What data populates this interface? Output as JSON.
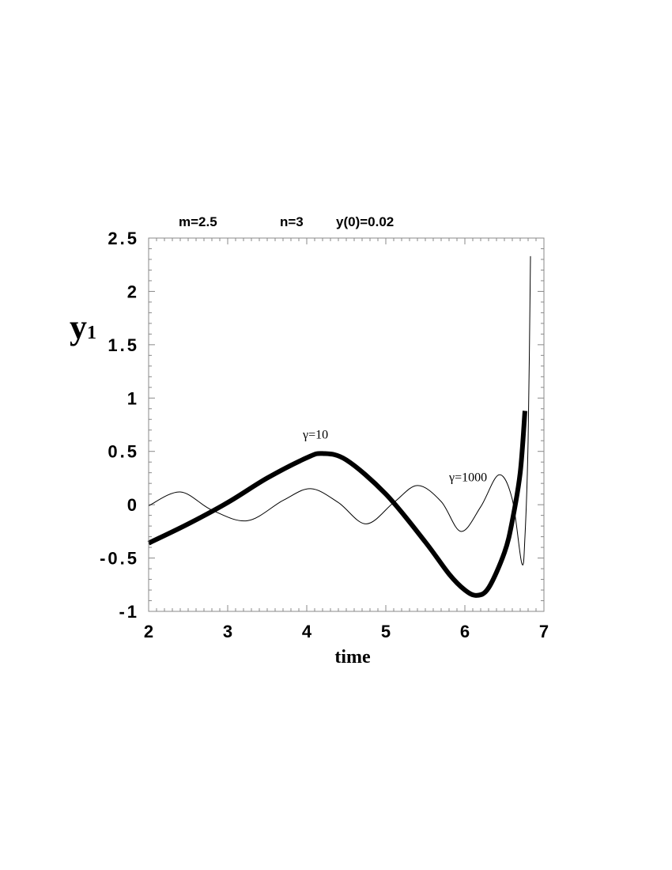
{
  "params": {
    "m": "m=2.5",
    "n": "n=3",
    "y0": "y(0)=0.02"
  },
  "chart_data": {
    "type": "line",
    "xlabel": "time",
    "ylabel": "y",
    "ylabel_subscript": "1",
    "xlim": [
      2,
      7
    ],
    "ylim": [
      -1,
      2.5
    ],
    "x_ticks": [
      "2",
      "3",
      "4",
      "5",
      "6",
      "7"
    ],
    "y_ticks": [
      {
        "value": 2.5,
        "label": "2.5"
      },
      {
        "value": 2,
        "label": "2"
      },
      {
        "value": 1.5,
        "label": "1.5"
      },
      {
        "value": 1,
        "label": "1"
      },
      {
        "value": 0.5,
        "label": "0.5"
      },
      {
        "value": 0,
        "label": "0"
      },
      {
        "value": -0.5,
        "label": "-0.5"
      },
      {
        "value": -1,
        "label": "-1"
      }
    ],
    "grid": false,
    "series": [
      {
        "name": "γ=10",
        "line_weight": "thick",
        "label_at": [
          3.95,
          0.62
        ],
        "x": [
          2.0,
          2.5,
          3.0,
          3.5,
          4.0,
          4.2,
          4.5,
          5.0,
          5.5,
          5.8,
          6.0,
          6.15,
          6.3,
          6.5,
          6.6,
          6.7,
          6.76
        ],
        "y": [
          -0.36,
          -0.18,
          0.02,
          0.25,
          0.44,
          0.48,
          0.42,
          0.1,
          -0.35,
          -0.65,
          -0.8,
          -0.85,
          -0.78,
          -0.45,
          -0.15,
          0.3,
          0.88
        ]
      },
      {
        "name": "γ=1000",
        "line_weight": "thin",
        "label_at": [
          5.8,
          0.22
        ],
        "x": [
          2.0,
          2.4,
          2.8,
          3.25,
          3.7,
          4.05,
          4.4,
          4.75,
          5.1,
          5.4,
          5.7,
          5.95,
          6.2,
          6.43,
          6.6,
          6.72,
          6.76,
          6.8,
          6.83
        ],
        "y": [
          -0.01,
          0.12,
          -0.05,
          -0.15,
          0.04,
          0.15,
          0.02,
          -0.18,
          0.02,
          0.18,
          0.03,
          -0.25,
          -0.02,
          0.28,
          0.05,
          -0.55,
          -0.3,
          0.6,
          2.33
        ]
      }
    ]
  }
}
